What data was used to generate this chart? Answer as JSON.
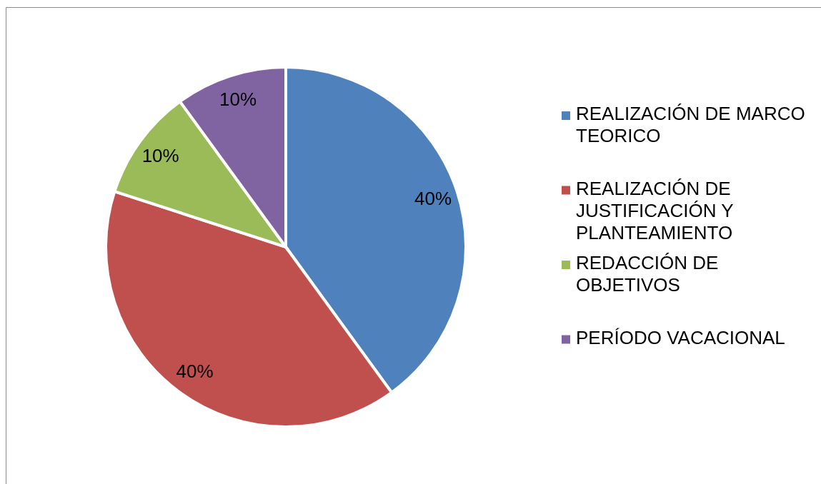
{
  "chart_data": {
    "type": "pie",
    "categories": [
      "REALIZACIÓN DE MARCO TEORICO",
      "REALIZACIÓN DE JUSTIFICACIÓN Y PLANTEAMIENTO",
      "REDACCIÓN DE OBJETIVOS",
      "PERÍODO VACACIONAL"
    ],
    "values": [
      40,
      40,
      10,
      10
    ],
    "colors": [
      "#4f81bd",
      "#c0504d",
      "#9bbb59",
      "#8064a2"
    ],
    "value_labels": [
      "40%",
      "40%",
      "10%",
      "10%"
    ],
    "legend": "right"
  }
}
